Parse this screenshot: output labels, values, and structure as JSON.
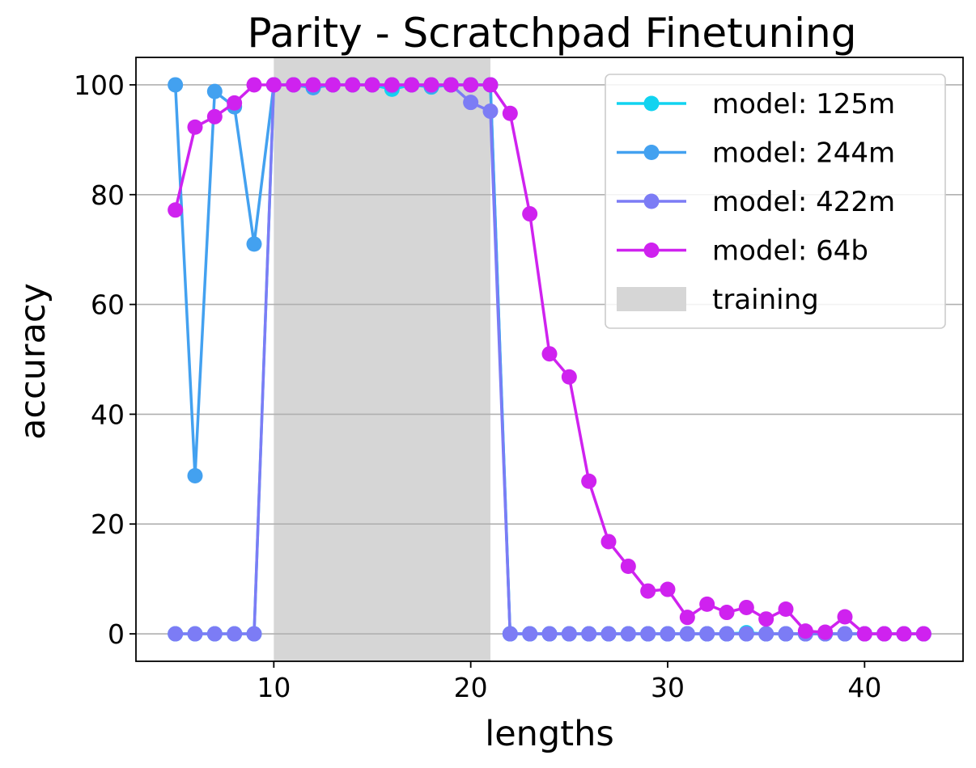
{
  "chart_data": {
    "type": "line",
    "title": "Parity - Scratchpad Finetuning",
    "xlabel": "lengths",
    "ylabel": "accuracy",
    "xlim": [
      3,
      45
    ],
    "ylim": [
      -5,
      105
    ],
    "xticks": [
      10,
      20,
      30,
      40
    ],
    "yticks": [
      0,
      20,
      40,
      60,
      80,
      100
    ],
    "grid": "horizontal",
    "legend_position": "top-right",
    "shaded_region": {
      "label": "training",
      "x_start": 10,
      "x_end": 21,
      "color": "#d6d6d6"
    },
    "x": [
      5,
      6,
      7,
      8,
      9,
      10,
      11,
      12,
      13,
      14,
      15,
      16,
      17,
      18,
      19,
      20,
      21,
      22,
      23,
      24,
      25,
      26,
      27,
      28,
      29,
      30,
      31,
      32,
      33,
      34,
      35,
      36,
      37,
      38,
      39,
      40,
      41,
      42,
      43
    ],
    "series": [
      {
        "name": "model: 125m",
        "color": "#11d3f0",
        "values": [
          0,
          0,
          0,
          0,
          0,
          100,
          100,
          99.5,
          100,
          100,
          100,
          99.2,
          100,
          99.6,
          100,
          100,
          100,
          0,
          0,
          0,
          0,
          0,
          0,
          0,
          0,
          0,
          0,
          0,
          0,
          0.2,
          0,
          0,
          0,
          0,
          0,
          0,
          0,
          0,
          0
        ]
      },
      {
        "name": "model: 244m",
        "color": "#43a1f0",
        "values": [
          100,
          28.8,
          98.8,
          96,
          71,
          100,
          100,
          99.5,
          100,
          100,
          100,
          99.8,
          100,
          99.7,
          100,
          100,
          100,
          0,
          0,
          0,
          0,
          0,
          0,
          0,
          0,
          0,
          0,
          0,
          0,
          0,
          0,
          0,
          0,
          0,
          0,
          0,
          0,
          0,
          0
        ]
      },
      {
        "name": "model: 422m",
        "color": "#7c7cf5",
        "values": [
          0,
          0,
          0,
          0,
          0,
          100,
          100,
          100,
          100,
          100,
          100,
          100,
          100,
          100,
          100,
          96.8,
          95.2,
          0,
          0,
          0,
          0,
          0,
          0,
          0,
          0,
          0,
          0,
          0,
          0,
          0,
          0,
          0,
          0,
          0,
          0,
          0,
          0,
          0,
          0
        ]
      },
      {
        "name": "model: 64b",
        "color": "#cf22ef",
        "values": [
          77.2,
          92.3,
          94.2,
          96.7,
          100,
          100,
          100,
          100,
          100,
          100,
          100,
          100,
          100,
          100,
          100,
          100,
          100,
          94.8,
          76.5,
          51,
          46.8,
          27.8,
          16.8,
          12.3,
          7.8,
          8.1,
          3,
          5.4,
          3.9,
          4.8,
          2.7,
          4.5,
          0.5,
          0.3,
          3.1,
          0,
          0,
          0,
          0
        ]
      }
    ]
  }
}
